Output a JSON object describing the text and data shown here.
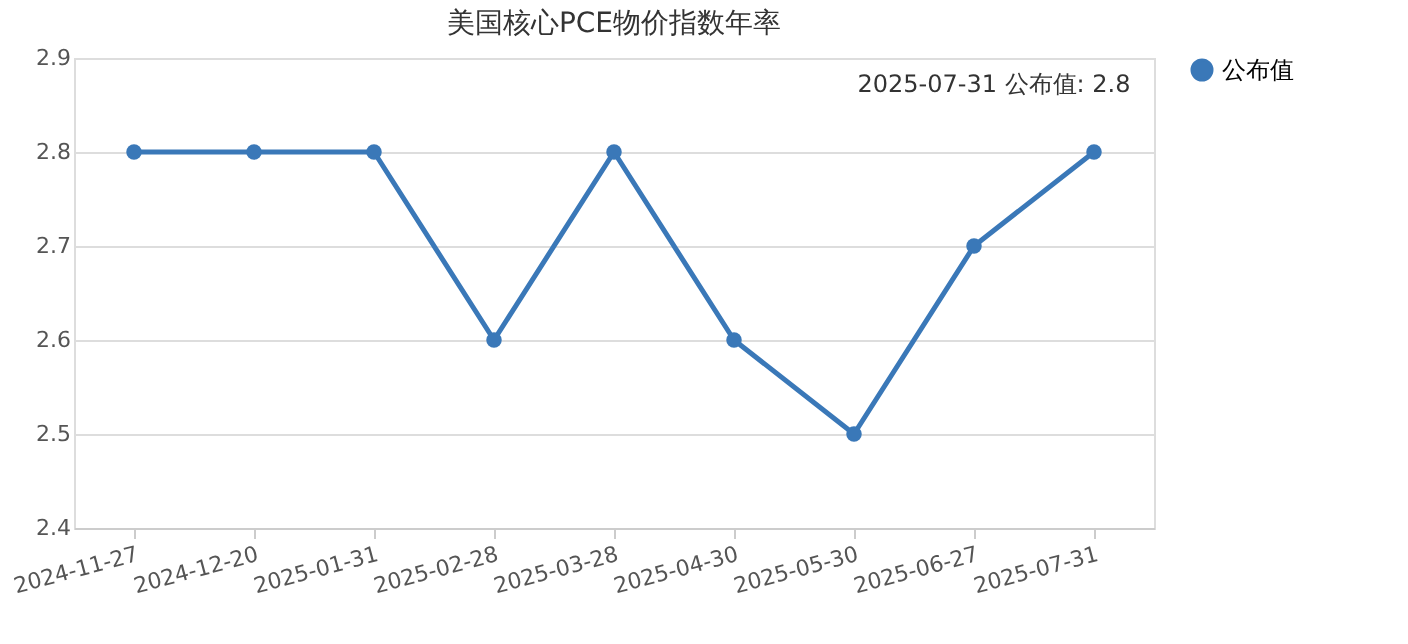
{
  "chart_data": {
    "type": "line",
    "title": "美国核心PCE物价指数年率",
    "categories": [
      "2024-11-27",
      "2024-12-20",
      "2025-01-31",
      "2025-02-28",
      "2025-03-28",
      "2025-04-30",
      "2025-05-30",
      "2025-06-27",
      "2025-07-31"
    ],
    "series": [
      {
        "name": "公布值",
        "color": "#3a78b8",
        "values": [
          2.8,
          2.8,
          2.8,
          2.6,
          2.8,
          2.6,
          2.5,
          2.7,
          2.8
        ]
      }
    ],
    "ylim": [
      2.4,
      2.9
    ],
    "yticks": [
      2.4,
      2.5,
      2.6,
      2.7,
      2.8,
      2.9
    ],
    "grid": "y",
    "legend": "right",
    "marker": "circle",
    "line_style": "solid",
    "annotations": [
      {
        "text": "2025-07-31 公布值: 2.8",
        "x": "2025-07-31",
        "y": 2.8
      }
    ]
  }
}
